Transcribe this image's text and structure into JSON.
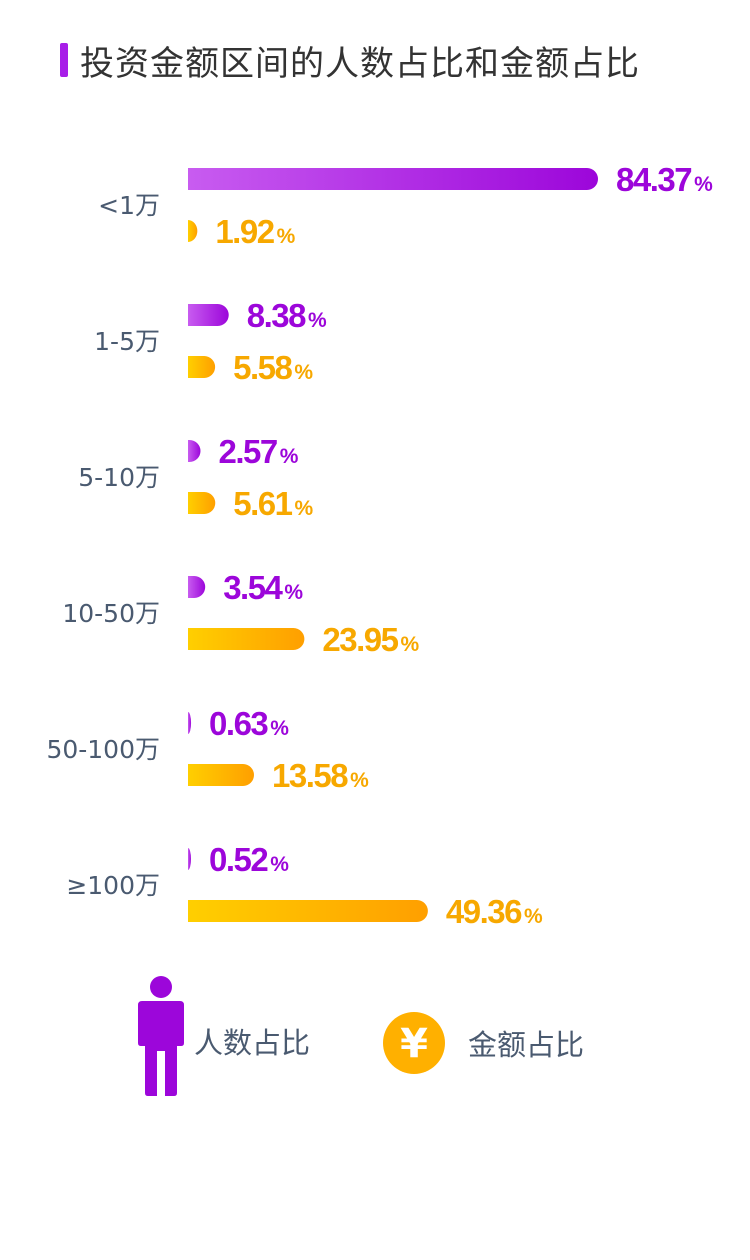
{
  "page": {
    "title": "投资金额区间的人数占比和金额占比"
  },
  "legend": {
    "people_label": "人数占比",
    "amount_label": "金额占比",
    "amount_icon_glyph": "¥",
    "people_icon": "person-icon",
    "amount_icon": "yuan-coin-icon"
  },
  "colors": {
    "people_start": "#c85cf0",
    "people_end": "#9c06da",
    "amount_start": "#ffcf00",
    "amount_end": "#ff9f00",
    "people_text": "#9c06da",
    "amount_text": "#f7a800",
    "title_accent": "#a81ee8"
  },
  "chart_data": {
    "type": "bar",
    "orientation": "horizontal",
    "categories": [
      "<1万",
      "1-5万",
      "5-10万",
      "10-50万",
      "50-100万",
      "≥100万"
    ],
    "series": [
      {
        "name": "人数占比",
        "values": [
          84.37,
          8.38,
          2.57,
          3.54,
          0.63,
          0.52
        ]
      },
      {
        "name": "金额占比",
        "values": [
          1.92,
          5.58,
          5.61,
          23.95,
          13.58,
          49.36
        ]
      }
    ],
    "value_labels": {
      "people": [
        "84.37",
        "8.38",
        "2.57",
        "3.54",
        "0.63",
        "0.52"
      ],
      "amount": [
        "1.92",
        "5.58",
        "5.61",
        "23.95",
        "13.58",
        "49.36"
      ]
    },
    "unit": "%",
    "xlim": [
      0,
      84.37
    ],
    "grid": false,
    "legend_position": "bottom"
  }
}
